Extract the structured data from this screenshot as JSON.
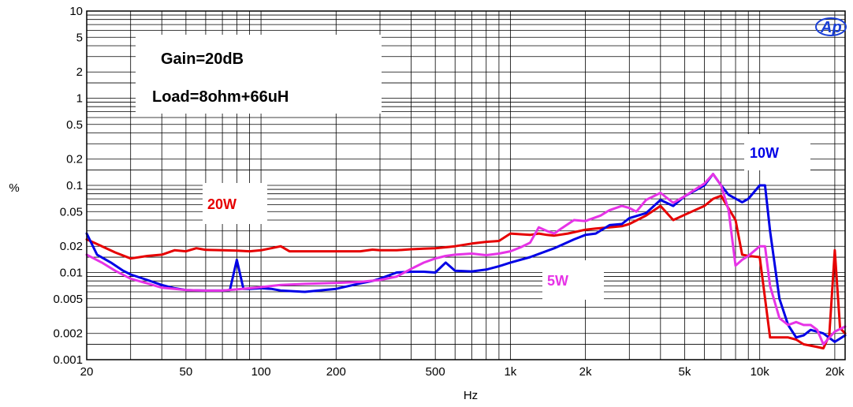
{
  "chart_data": {
    "type": "line",
    "xlabel": "Hz",
    "ylabel": "%",
    "x_scale": "log",
    "y_scale": "log",
    "xlim": [
      20,
      22000
    ],
    "ylim": [
      0.001,
      10
    ],
    "x_ticks": [
      20,
      50,
      100,
      200,
      500,
      1000,
      2000,
      5000,
      10000,
      20000
    ],
    "x_tick_labels": [
      "20",
      "50",
      "100",
      "200",
      "500",
      "1k",
      "2k",
      "5k",
      "10k",
      "20k"
    ],
    "y_ticks": [
      0.001,
      0.002,
      0.005,
      0.01,
      0.02,
      0.05,
      0.1,
      0.2,
      0.5,
      1,
      2,
      5,
      10
    ],
    "y_tick_labels": [
      "0.001",
      "0.002",
      "0.005",
      "0.01",
      "0.02",
      "0.05",
      "0.1",
      "0.2",
      "0.5",
      "1",
      "2",
      "5",
      "10"
    ],
    "grid": true,
    "annotations": [
      "Gain=20dB",
      "Load=8ohm+66uH"
    ],
    "logo": "Ap",
    "series": [
      {
        "name": "20W",
        "color": "#e60000",
        "points": [
          [
            20,
            0.024
          ],
          [
            23,
            0.02
          ],
          [
            26,
            0.017
          ],
          [
            30,
            0.0145
          ],
          [
            35,
            0.0155
          ],
          [
            40,
            0.016
          ],
          [
            45,
            0.018
          ],
          [
            50,
            0.0175
          ],
          [
            55,
            0.019
          ],
          [
            60,
            0.0182
          ],
          [
            70,
            0.018
          ],
          [
            80,
            0.0178
          ],
          [
            90,
            0.0175
          ],
          [
            100,
            0.018
          ],
          [
            110,
            0.019
          ],
          [
            120,
            0.02
          ],
          [
            130,
            0.0175
          ],
          [
            150,
            0.0175
          ],
          [
            200,
            0.0175
          ],
          [
            250,
            0.0175
          ],
          [
            280,
            0.0183
          ],
          [
            300,
            0.018
          ],
          [
            350,
            0.018
          ],
          [
            400,
            0.0185
          ],
          [
            450,
            0.0188
          ],
          [
            500,
            0.019
          ],
          [
            550,
            0.0195
          ],
          [
            600,
            0.02
          ],
          [
            700,
            0.0215
          ],
          [
            800,
            0.0225
          ],
          [
            900,
            0.023
          ],
          [
            1000,
            0.028
          ],
          [
            1100,
            0.0275
          ],
          [
            1200,
            0.027
          ],
          [
            1300,
            0.028
          ],
          [
            1400,
            0.027
          ],
          [
            1500,
            0.0265
          ],
          [
            1700,
            0.028
          ],
          [
            2000,
            0.031
          ],
          [
            2200,
            0.032
          ],
          [
            2500,
            0.033
          ],
          [
            2800,
            0.034
          ],
          [
            3000,
            0.036
          ],
          [
            3500,
            0.045
          ],
          [
            4000,
            0.058
          ],
          [
            4500,
            0.04
          ],
          [
            5000,
            0.046
          ],
          [
            6000,
            0.058
          ],
          [
            6500,
            0.07
          ],
          [
            7000,
            0.076
          ],
          [
            8000,
            0.04
          ],
          [
            8500,
            0.016
          ],
          [
            9000,
            0.0155
          ],
          [
            10000,
            0.015
          ],
          [
            11000,
            0.0018
          ],
          [
            12000,
            0.0018
          ],
          [
            13000,
            0.0018
          ],
          [
            14000,
            0.0017
          ],
          [
            15000,
            0.0015
          ],
          [
            17000,
            0.0014
          ],
          [
            18000,
            0.00135
          ],
          [
            19000,
            0.0019
          ],
          [
            20000,
            0.018
          ],
          [
            21000,
            0.0023
          ],
          [
            22000,
            0.002
          ]
        ]
      },
      {
        "name": "10W",
        "color": "#0000e6",
        "points": [
          [
            20,
            0.028
          ],
          [
            22,
            0.016
          ],
          [
            25,
            0.013
          ],
          [
            28,
            0.0105
          ],
          [
            30,
            0.0095
          ],
          [
            35,
            0.0082
          ],
          [
            40,
            0.0072
          ],
          [
            45,
            0.0066
          ],
          [
            50,
            0.0063
          ],
          [
            60,
            0.0062
          ],
          [
            70,
            0.0062
          ],
          [
            75,
            0.0063
          ],
          [
            80,
            0.014
          ],
          [
            85,
            0.0065
          ],
          [
            90,
            0.0065
          ],
          [
            100,
            0.0066
          ],
          [
            110,
            0.0065
          ],
          [
            120,
            0.0062
          ],
          [
            150,
            0.006
          ],
          [
            200,
            0.0065
          ],
          [
            250,
            0.0075
          ],
          [
            280,
            0.008
          ],
          [
            300,
            0.0085
          ],
          [
            350,
            0.01
          ],
          [
            400,
            0.0102
          ],
          [
            450,
            0.0102
          ],
          [
            500,
            0.01
          ],
          [
            550,
            0.013
          ],
          [
            600,
            0.0105
          ],
          [
            700,
            0.0103
          ],
          [
            800,
            0.0108
          ],
          [
            900,
            0.0118
          ],
          [
            1000,
            0.013
          ],
          [
            1200,
            0.015
          ],
          [
            1500,
            0.019
          ],
          [
            1800,
            0.024
          ],
          [
            2000,
            0.027
          ],
          [
            2200,
            0.028
          ],
          [
            2500,
            0.035
          ],
          [
            2800,
            0.036
          ],
          [
            3000,
            0.042
          ],
          [
            3500,
            0.048
          ],
          [
            4000,
            0.068
          ],
          [
            4500,
            0.058
          ],
          [
            5000,
            0.075
          ],
          [
            6000,
            0.1
          ],
          [
            6500,
            0.135
          ],
          [
            7000,
            0.1
          ],
          [
            7500,
            0.078
          ],
          [
            8500,
            0.064
          ],
          [
            9000,
            0.07
          ],
          [
            10000,
            0.1
          ],
          [
            10500,
            0.1
          ],
          [
            11000,
            0.03
          ],
          [
            12000,
            0.005
          ],
          [
            13000,
            0.0025
          ],
          [
            14000,
            0.0018
          ],
          [
            15000,
            0.0019
          ],
          [
            16000,
            0.0022
          ],
          [
            18000,
            0.002
          ],
          [
            20000,
            0.0016
          ],
          [
            22000,
            0.0019
          ]
        ]
      },
      {
        "name": "5W",
        "color": "#e633e6",
        "points": [
          [
            20,
            0.016
          ],
          [
            23,
            0.013
          ],
          [
            26,
            0.0105
          ],
          [
            30,
            0.0085
          ],
          [
            35,
            0.0075
          ],
          [
            40,
            0.0067
          ],
          [
            45,
            0.0065
          ],
          [
            50,
            0.0063
          ],
          [
            60,
            0.0062
          ],
          [
            70,
            0.0062
          ],
          [
            80,
            0.0064
          ],
          [
            90,
            0.0066
          ],
          [
            100,
            0.0068
          ],
          [
            120,
            0.0072
          ],
          [
            150,
            0.0074
          ],
          [
            200,
            0.0076
          ],
          [
            250,
            0.0078
          ],
          [
            300,
            0.0082
          ],
          [
            350,
            0.009
          ],
          [
            400,
            0.011
          ],
          [
            450,
            0.013
          ],
          [
            500,
            0.0145
          ],
          [
            550,
            0.0155
          ],
          [
            600,
            0.016
          ],
          [
            700,
            0.0165
          ],
          [
            800,
            0.0158
          ],
          [
            900,
            0.0165
          ],
          [
            1000,
            0.0175
          ],
          [
            1100,
            0.0195
          ],
          [
            1200,
            0.022
          ],
          [
            1300,
            0.033
          ],
          [
            1400,
            0.03
          ],
          [
            1500,
            0.028
          ],
          [
            1600,
            0.032
          ],
          [
            1800,
            0.04
          ],
          [
            2000,
            0.039
          ],
          [
            2300,
            0.045
          ],
          [
            2500,
            0.052
          ],
          [
            2800,
            0.058
          ],
          [
            3000,
            0.055
          ],
          [
            3200,
            0.05
          ],
          [
            3500,
            0.068
          ],
          [
            4000,
            0.082
          ],
          [
            4500,
            0.063
          ],
          [
            5000,
            0.075
          ],
          [
            6000,
            0.105
          ],
          [
            6500,
            0.135
          ],
          [
            7000,
            0.1
          ],
          [
            7500,
            0.052
          ],
          [
            8000,
            0.012
          ],
          [
            8500,
            0.014
          ],
          [
            9000,
            0.0155
          ],
          [
            10000,
            0.02
          ],
          [
            10500,
            0.02
          ],
          [
            11000,
            0.007
          ],
          [
            12000,
            0.003
          ],
          [
            13000,
            0.0025
          ],
          [
            14000,
            0.0027
          ],
          [
            15000,
            0.0025
          ],
          [
            16000,
            0.0025
          ],
          [
            17000,
            0.0022
          ],
          [
            18000,
            0.0015
          ],
          [
            20000,
            0.0021
          ],
          [
            22000,
            0.0024
          ]
        ]
      }
    ]
  }
}
